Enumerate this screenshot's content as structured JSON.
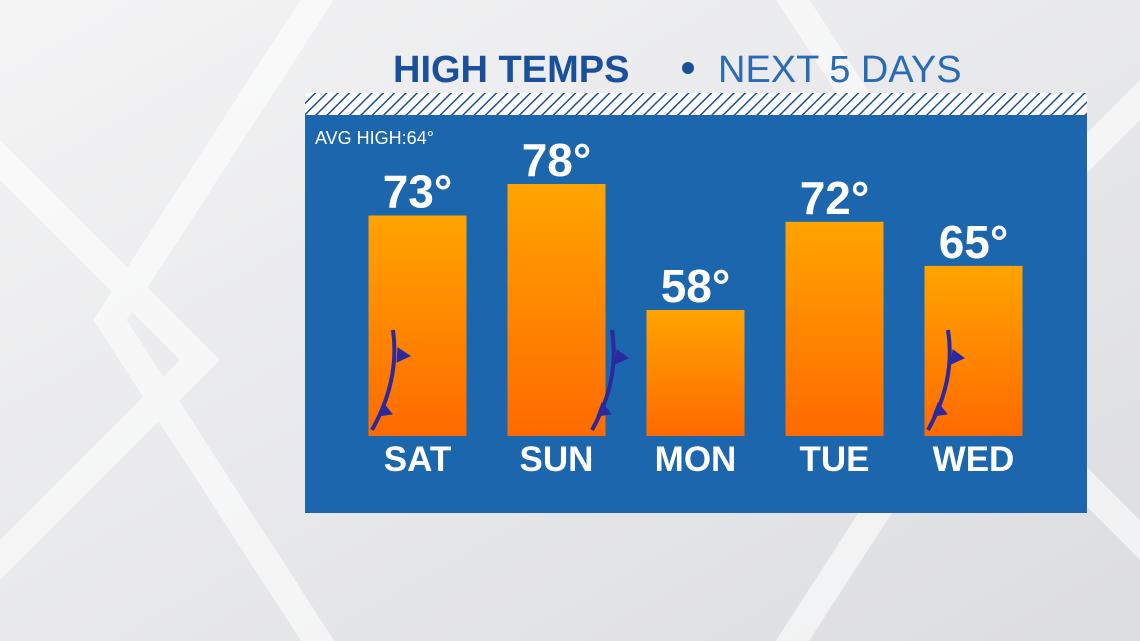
{
  "chart_data": {
    "type": "bar",
    "title": "HIGH TEMPS",
    "subtitle": "NEXT 5 DAYS",
    "annotation": "AVG HIGH:64°",
    "categories": [
      "SAT",
      "SUN",
      "MON",
      "TUE",
      "WED"
    ],
    "values": [
      73,
      78,
      58,
      72,
      65
    ],
    "value_labels": [
      "73°",
      "78°",
      "58°",
      "72°",
      "65°"
    ],
    "color": "#ff8a00",
    "ylim": [
      38,
      88
    ]
  }
}
